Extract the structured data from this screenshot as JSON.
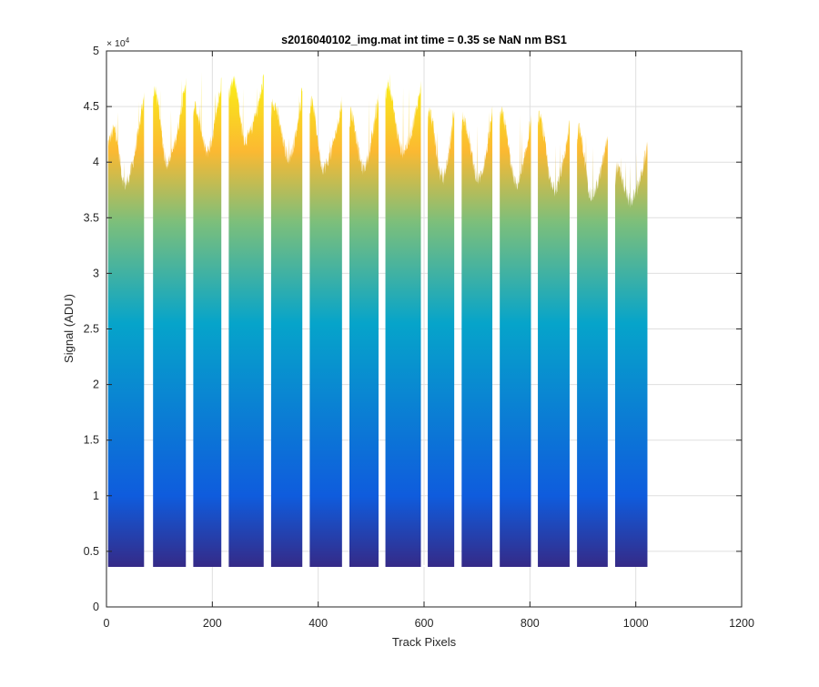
{
  "chart_data": {
    "type": "area",
    "title": "s2016040102_img.mat int time = 0.35 se  NaN nm BS1",
    "xlabel": "Track Pixels",
    "ylabel": "Signal (ADU)",
    "xlim": [
      0,
      1200
    ],
    "ylim": [
      0,
      50000
    ],
    "x_ticks": [
      0,
      200,
      400,
      600,
      800,
      1000,
      1200
    ],
    "y_ticks": [
      0,
      0.5,
      1,
      1.5,
      2,
      2.5,
      3,
      3.5,
      4,
      4.5,
      5
    ],
    "y_multiplier": "× 10",
    "y_exponent": "4",
    "grid": true,
    "legend": "none",
    "colormap": "parula",
    "colors": {
      "low": "#352A87",
      "mid_low": "#0F5CDD",
      "mid": "#06A4CA",
      "mid_high": "#7CBF7B",
      "high": "#FBB932",
      "top": "#F9FB0E"
    },
    "baseline": 3600,
    "x_extent": [
      0,
      1024
    ],
    "gap_min": 3800,
    "gaps_x": [
      80,
      157,
      224,
      304,
      377,
      452,
      520,
      601,
      664,
      736,
      808,
      882,
      954
    ],
    "segments": [
      {
        "x_start": 3,
        "x_end": 71,
        "x_peak": 14,
        "y_peak": 43000,
        "x_trough": 35,
        "y_trough": 38000,
        "y_end": 46300,
        "y_max": 46500
      },
      {
        "x_start": 88,
        "x_end": 150,
        "x_peak": 90,
        "y_peak": 46500,
        "x_trough": 115,
        "y_trough": 40000,
        "y_end": 47500,
        "y_max": 47900
      },
      {
        "x_start": 164,
        "x_end": 217,
        "x_peak": 166,
        "y_peak": 45000,
        "x_trough": 190,
        "y_trough": 41000,
        "y_end": 47500,
        "y_max": 48300
      },
      {
        "x_start": 231,
        "x_end": 297,
        "x_peak": 240,
        "y_peak": 47500,
        "x_trough": 262,
        "y_trough": 42000,
        "y_end": 47500,
        "y_max": 48000
      },
      {
        "x_start": 311,
        "x_end": 370,
        "x_peak": 313,
        "y_peak": 45500,
        "x_trough": 345,
        "y_trough": 40500,
        "y_end": 46500,
        "y_max": 46800
      },
      {
        "x_start": 384,
        "x_end": 445,
        "x_peak": 386,
        "y_peak": 45500,
        "x_trough": 410,
        "y_trough": 39500,
        "y_end": 45500,
        "y_max": 45700
      },
      {
        "x_start": 459,
        "x_end": 514,
        "x_peak": 461,
        "y_peak": 44500,
        "x_trough": 485,
        "y_trough": 39500,
        "y_end": 46000,
        "y_max": 46300
      },
      {
        "x_start": 527,
        "x_end": 594,
        "x_peak": 530,
        "y_peak": 47000,
        "x_trough": 560,
        "y_trough": 41000,
        "y_end": 47000,
        "y_max": 49000
      },
      {
        "x_start": 607,
        "x_end": 657,
        "x_peak": 609,
        "y_peak": 44500,
        "x_trough": 635,
        "y_trough": 38500,
        "y_end": 45000,
        "y_max": 45300
      },
      {
        "x_start": 671,
        "x_end": 729,
        "x_peak": 673,
        "y_peak": 44000,
        "x_trough": 703,
        "y_trough": 38500,
        "y_end": 44500,
        "y_max": 44800
      },
      {
        "x_start": 743,
        "x_end": 802,
        "x_peak": 745,
        "y_peak": 44500,
        "x_trough": 775,
        "y_trough": 38000,
        "y_end": 44000,
        "y_max": 44500
      },
      {
        "x_start": 815,
        "x_end": 875,
        "x_peak": 817,
        "y_peak": 44000,
        "x_trough": 845,
        "y_trough": 37500,
        "y_end": 43500,
        "y_max": 43800
      },
      {
        "x_start": 889,
        "x_end": 947,
        "x_peak": 891,
        "y_peak": 43000,
        "x_trough": 917,
        "y_trough": 37000,
        "y_end": 42500,
        "y_max": 42800
      },
      {
        "x_start": 961,
        "x_end": 1022,
        "x_peak": 963,
        "y_peak": 39500,
        "x_trough": 990,
        "y_trough": 36500,
        "y_end": 41500,
        "y_max": 41700
      }
    ]
  }
}
